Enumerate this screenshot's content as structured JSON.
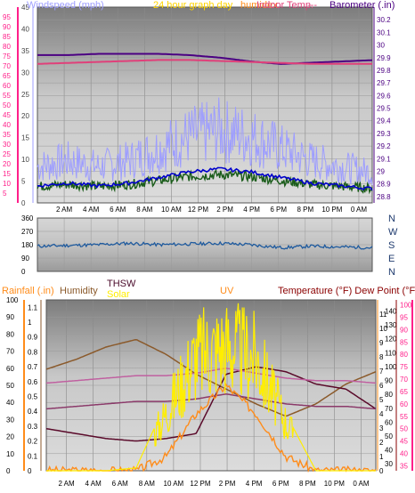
{
  "panel1": {
    "label_windspeed": "Windspeed (mph)",
    "label_title": "24 hour graph day",
    "label_humidex": "humidex",
    "label_indoor": "Indoor Temp.",
    "label_dash": "---",
    "label_barometer": "Barometer (.in)"
  },
  "panel2": {
    "labels_right": [
      "N",
      "W",
      "S",
      "E",
      "N"
    ]
  },
  "panel3": {
    "label_rain": "Rainfall (.in)",
    "label_humidity": "Humidity",
    "label_thsw": "THSW",
    "label_solar": "Solar",
    "label_uv": "UV",
    "label_temp": "Temperature (°F) Dew Point (°F)"
  },
  "colors": {
    "windspeed": "#9d9dff",
    "wind_avg": "#0000cc",
    "gust_green": "#1a5c1a",
    "barometer": "#4b0082",
    "indoor": "#e0407a",
    "direction": "#1e5a9e",
    "humidity": "#8b5a2b",
    "thsw": "#5a0a2a",
    "solar": "#ffee00",
    "uv": "#ff8c1a",
    "temperature": "#c060a0",
    "dewpoint": "#8b3a6a"
  },
  "chart_data": [
    {
      "type": "line",
      "title": "24 hour graph day",
      "x": [
        "2 AM",
        "4 AM",
        "6 AM",
        "8 AM",
        "10 AM",
        "12 PM",
        "2 PM",
        "4 PM",
        "6 PM",
        "8 PM",
        "10 PM",
        "0 AM"
      ],
      "left_axis": {
        "label": "Windspeed (mph)",
        "ticks": [
          5,
          10,
          15,
          20,
          25,
          30,
          35,
          40,
          45,
          50,
          55,
          60,
          65,
          70,
          75,
          80,
          85,
          90,
          95
        ],
        "ylim": [
          0,
          100
        ]
      },
      "mid_axis": {
        "ticks": [
          0,
          5,
          10,
          15,
          20,
          25,
          30,
          35,
          40,
          45
        ],
        "ylim": [
          0,
          45
        ]
      },
      "right_axis": {
        "label": "Barometer (.in)",
        "ticks": [
          28.8,
          28.9,
          29,
          29.1,
          29.2,
          29.3,
          29.4,
          29.5,
          29.6,
          29.7,
          29.8,
          29.9,
          30,
          30.1,
          30.2
        ],
        "ylim": [
          28.75,
          30.3
        ]
      },
      "series": [
        {
          "name": "Barometer (.in)",
          "values": [
            29.92,
            29.92,
            29.93,
            29.93,
            29.93,
            29.92,
            29.9,
            29.87,
            29.85,
            29.86,
            29.87,
            29.88
          ]
        },
        {
          "name": "Indoor Temp.",
          "values": [
            71,
            71.5,
            72,
            72.5,
            73,
            73,
            72.5,
            72,
            71.5,
            71,
            71,
            71
          ]
        },
        {
          "name": "Windspeed (mph)",
          "values": [
            6,
            7,
            6,
            7,
            9,
            11,
            12,
            11,
            9,
            7,
            6,
            5
          ]
        }
      ]
    },
    {
      "type": "line",
      "left_axis": {
        "ticks": [
          0,
          90,
          180,
          270,
          360
        ],
        "ylim": [
          0,
          360
        ]
      },
      "right_axis": {
        "ticks": [
          "N",
          "W",
          "S",
          "E",
          "N"
        ]
      },
      "series": [
        {
          "name": "Wind direction",
          "values": [
            170,
            175,
            180,
            190,
            180,
            185,
            190,
            180,
            160,
            170,
            165,
            160
          ]
        }
      ]
    },
    {
      "type": "line",
      "x": [
        "2 AM",
        "4 AM",
        "6 AM",
        "8 AM",
        "10 AM",
        "12 PM",
        "2 PM",
        "4 PM",
        "6 PM",
        "8 PM",
        "10 PM",
        "0 AM"
      ],
      "axes": {
        "rain": {
          "label": "Rainfall (.in)",
          "ticks": [
            0,
            10,
            20,
            30,
            40,
            50,
            60,
            70,
            80,
            90,
            100
          ],
          "ylim": [
            0,
            100
          ]
        },
        "humidity": {
          "label": "Humidity",
          "ticks": [
            0,
            0.1,
            0.2,
            0.3,
            0.4,
            0.5,
            0.6,
            0.7,
            0.8,
            0.9,
            1,
            1.1
          ],
          "ylim": [
            0,
            1.15
          ]
        },
        "uv": {
          "label": "UV",
          "ticks": [
            0,
            1,
            2,
            3,
            4,
            5,
            6,
            7,
            8,
            9,
            10,
            11
          ],
          "ylim": [
            0,
            12
          ]
        },
        "temp": {
          "label": "Temperature (°F) Dew Point (°F)",
          "ticks": [
            30,
            40,
            50,
            60,
            70,
            80,
            90,
            100,
            110,
            120,
            130,
            140
          ],
          "ylim": [
            25,
            148
          ]
        },
        "dew": {
          "ticks": [
            35,
            40,
            45,
            50,
            55,
            60,
            65,
            70,
            75,
            80,
            85,
            90,
            95,
            100
          ],
          "ylim": [
            33,
            102
          ]
        }
      },
      "series": [
        {
          "name": "Humidity",
          "values": [
            74,
            78,
            83,
            86,
            80,
            72,
            66,
            60,
            55,
            60,
            68,
            73
          ]
        },
        {
          "name": "THSW",
          "values": [
            50,
            48,
            46,
            45,
            46,
            48,
            72,
            75,
            73,
            68,
            66,
            58
          ]
        },
        {
          "name": "Solar",
          "values": [
            0,
            0,
            0,
            10,
            240,
            480,
            520,
            470,
            200,
            0,
            0,
            0
          ]
        },
        {
          "name": "UV",
          "values": [
            0,
            0,
            0,
            0,
            1,
            4,
            6,
            4,
            1,
            0,
            0,
            0
          ]
        },
        {
          "name": "Temperature (°F)",
          "values": [
            72,
            73,
            74,
            75,
            75,
            76,
            78,
            76,
            74,
            73,
            73,
            72
          ]
        }
      ]
    }
  ]
}
